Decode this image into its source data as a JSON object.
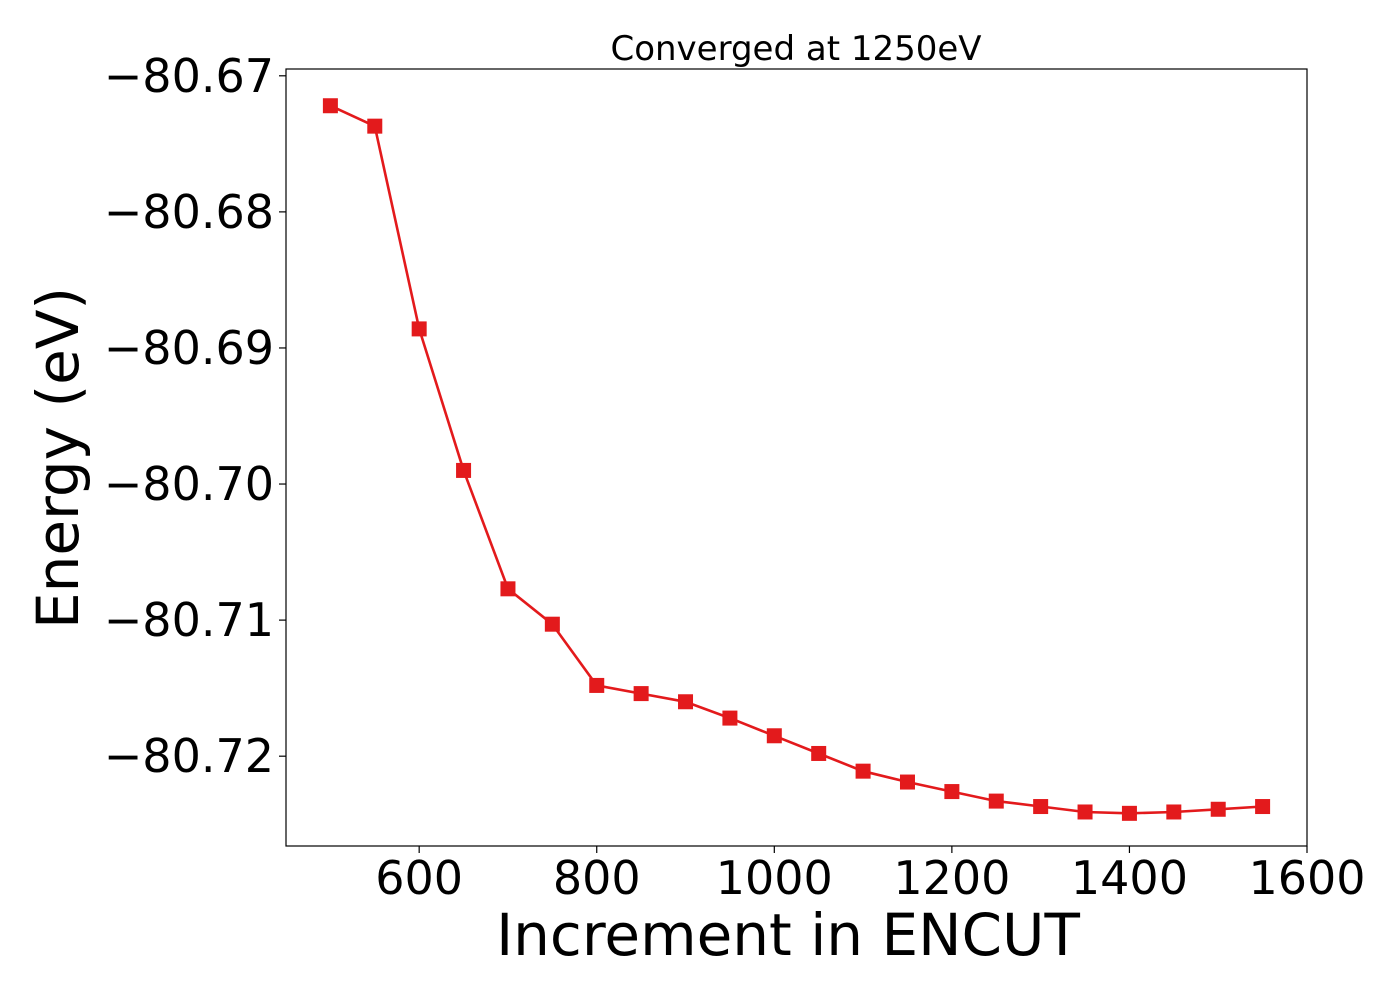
{
  "chart_data": {
    "type": "line",
    "title": "Converged at 1250eV",
    "xlabel": "Increment in ENCUT",
    "ylabel": "Energy (eV)",
    "xlim": [
      450,
      1600
    ],
    "ylim": [
      -80.7266,
      -80.6695
    ],
    "x_ticks": [
      600,
      800,
      1000,
      1200,
      1400,
      1600
    ],
    "x_tick_labels": [
      "600",
      "800",
      "1000",
      "1200",
      "1400",
      "1600"
    ],
    "y_ticks": [
      -80.67,
      -80.68,
      -80.69,
      -80.7,
      -80.71,
      -80.72
    ],
    "y_tick_labels": [
      "−80.67",
      "−80.68",
      "−80.69",
      "−80.70",
      "−80.71",
      "−80.72"
    ],
    "grid": false,
    "series": [
      {
        "color": "#e31a1c",
        "marker": "square",
        "x": [
          500,
          550,
          600,
          650,
          700,
          750,
          800,
          850,
          900,
          950,
          1000,
          1050,
          1100,
          1150,
          1200,
          1250,
          1300,
          1350,
          1400,
          1450,
          1500,
          1550
        ],
        "y": [
          -80.6722,
          -80.6737,
          -80.6886,
          -80.699,
          -80.7077,
          -80.7103,
          -80.7148,
          -80.7154,
          -80.716,
          -80.7172,
          -80.7185,
          -80.7198,
          -80.7211,
          -80.7219,
          -80.7226,
          -80.7233,
          -80.7237,
          -80.7241,
          -80.7242,
          -80.7241,
          -80.7239,
          -80.7237
        ]
      }
    ]
  }
}
